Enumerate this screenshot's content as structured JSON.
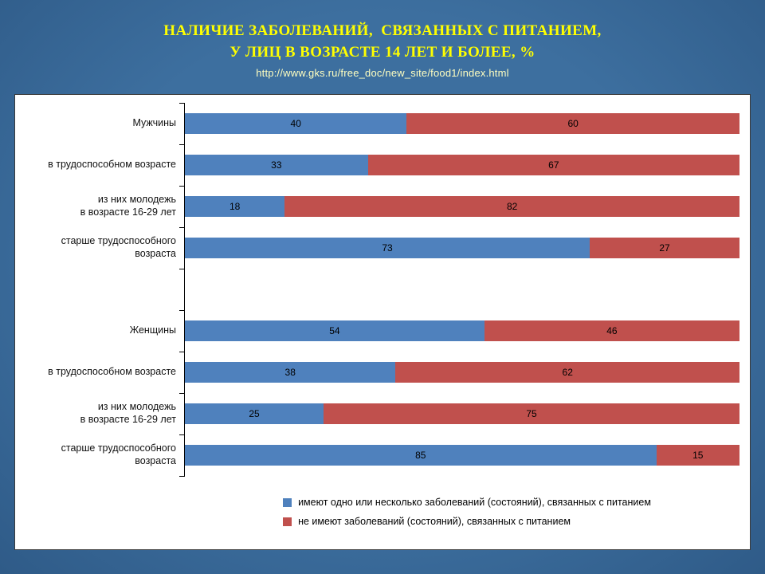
{
  "header": {
    "title_line1": "НАЛИЧИЕ ЗАБОЛЕВАНИЙ,  СВЯЗАННЫХ С ПИТАНИЕМ,",
    "title_line2": "У ЛИЦ В ВОЗРАСТЕ 14 ЛЕТ И БОЛЕЕ, %",
    "url": "http://www.gks.ru/free_doc/new_site/food1/index.html"
  },
  "colors": {
    "slide_background": "#3a6d9c",
    "title_text": "#ffff00",
    "url_text": "#ffffc0",
    "panel_background": "#ffffff",
    "series_blue": "#4f81bd",
    "series_red": "#c0504d"
  },
  "chart_data": {
    "type": "bar",
    "orientation": "horizontal",
    "stacked": true,
    "unit": "%",
    "xlim": [
      0,
      100
    ],
    "grid": false,
    "legend_position": "bottom",
    "categories": [
      "Мужчины",
      "в трудоспособном возрасте",
      "из них молодежь\nв возрасте 16-29 лет",
      "старше трудоспособного\nвозраста",
      "",
      "Женщины",
      "в трудоспособном возрасте",
      "из них молодежь\nв возрасте 16-29 лет",
      "старше трудоспособного\nвозраста"
    ],
    "series": [
      {
        "name": "имеют одно или несколько  заболеваний (состояний), связанных с питанием",
        "color": "#4f81bd",
        "values": [
          40,
          33,
          18,
          73,
          null,
          54,
          38,
          25,
          85
        ]
      },
      {
        "name": "не имеют  заболеваний (состояний), связанных с питанием",
        "color": "#c0504d",
        "values": [
          60,
          67,
          82,
          27,
          null,
          46,
          62,
          75,
          15
        ]
      }
    ],
    "legend": [
      "имеют одно или несколько  заболеваний (состояний), связанных с питанием",
      "не имеют  заболеваний (состояний), связанных с питанием"
    ]
  }
}
